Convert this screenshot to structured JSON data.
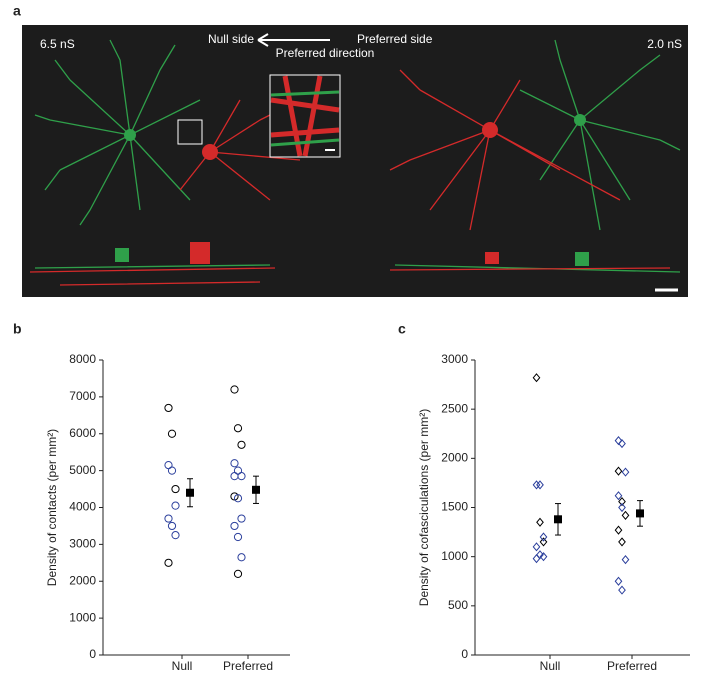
{
  "panel_a": {
    "label": "a",
    "left_label": "6.5 nS",
    "right_label": "2.0 nS",
    "null_side": "Null side",
    "preferred_side": "Preferred side",
    "direction": "Preferred direction"
  },
  "chart_data": [
    {
      "type": "scatter",
      "panel_label": "b",
      "y_label": "Density of contacts (per mm²)",
      "categories": [
        "Null",
        "Preferred"
      ],
      "ylim": [
        0,
        8000
      ],
      "yticks": [
        0,
        1000,
        2000,
        3000,
        4000,
        5000,
        6000,
        7000,
        8000
      ],
      "marker": "circle",
      "series": [
        {
          "color": "#000000",
          "values": [
            [
              6700,
              6000,
              4500,
              2500
            ],
            [
              7200,
              6150,
              5700,
              4300,
              2200
            ]
          ]
        },
        {
          "color": "#2b3f9c",
          "values": [
            [
              5150,
              5000,
              4050,
              3700,
              3500,
              3250
            ],
            [
              5200,
              5000,
              4850,
              4850,
              4250,
              3700,
              3500,
              3200,
              2650
            ]
          ]
        }
      ],
      "means": [
        4400,
        4480
      ],
      "errors": [
        380,
        370
      ]
    },
    {
      "type": "scatter",
      "panel_label": "c",
      "y_label": "Density of cofasciculations (per mm²)",
      "categories": [
        "Null",
        "Preferred"
      ],
      "ylim": [
        0,
        3000
      ],
      "yticks": [
        0,
        500,
        1000,
        1500,
        2000,
        2500,
        3000
      ],
      "marker": "diamond",
      "series": [
        {
          "color": "#000000",
          "values": [
            [
              2820,
              1350,
              1150
            ],
            [
              1870,
              1560,
              1420,
              1270,
              1150
            ]
          ]
        },
        {
          "color": "#2b3f9c",
          "values": [
            [
              1730,
              1730,
              1200,
              1100,
              1020,
              1000,
              980
            ],
            [
              2180,
              2150,
              1860,
              1620,
              1500,
              970,
              750,
              660
            ]
          ]
        }
      ],
      "means": [
        1380,
        1440
      ],
      "errors": [
        160,
        130
      ]
    }
  ]
}
